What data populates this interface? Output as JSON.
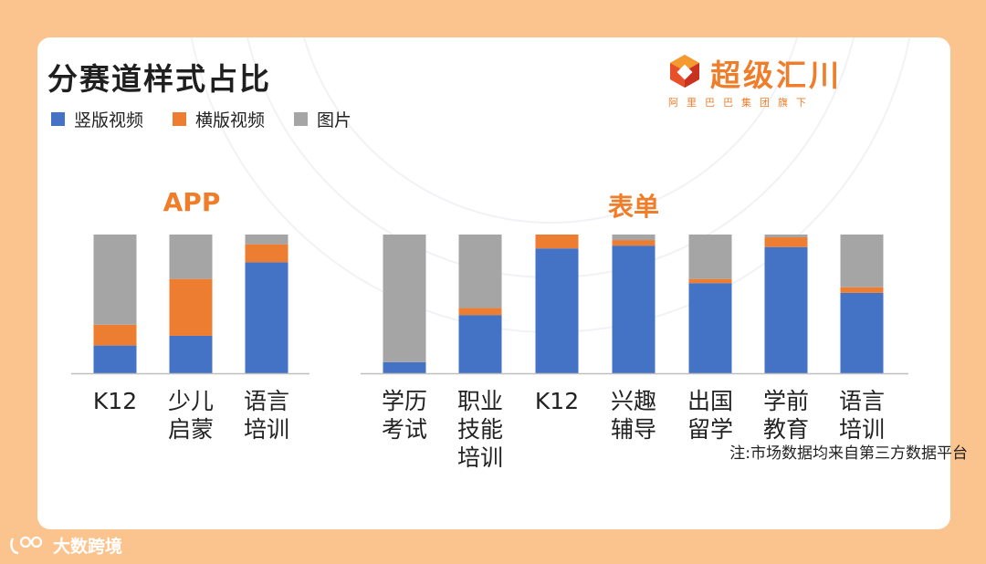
{
  "title": "分赛道样式占比",
  "logo": {
    "name": "超级汇川",
    "sub": "阿里巴巴集团旗下"
  },
  "colors": {
    "background": "#fbc48f",
    "accent": "#ef7d2a"
  },
  "watermark": "大数跨境",
  "note": "注:市场数据均来自第三方数据平台",
  "chart_data": [
    {
      "type": "bar",
      "stacked": true,
      "percent": true,
      "title": "APP",
      "categories": [
        "K12",
        "少儿\n启蒙",
        "语言\n培训"
      ],
      "series": [
        {
          "name": "竖版视频",
          "color": "#4472c4",
          "values": [
            20,
            27,
            80
          ]
        },
        {
          "name": "横版视频",
          "color": "#ed7d31",
          "values": [
            15,
            41,
            13
          ]
        },
        {
          "name": "图片",
          "color": "#a5a5a5",
          "values": [
            65,
            32,
            7
          ]
        }
      ],
      "ylim": [
        0,
        100
      ]
    },
    {
      "type": "bar",
      "stacked": true,
      "percent": true,
      "title": "表单",
      "categories": [
        "学历\n考试",
        "职业\n技能\n培训",
        "K12",
        "兴趣\n辅导",
        "出国\n留学",
        "学前\n教育",
        "语言\n培训"
      ],
      "series": [
        {
          "name": "竖版视频",
          "color": "#4472c4",
          "values": [
            8,
            42,
            90,
            92,
            65,
            91,
            58
          ]
        },
        {
          "name": "横版视频",
          "color": "#ed7d31",
          "values": [
            0,
            5,
            10,
            4,
            3,
            7,
            4
          ]
        },
        {
          "name": "图片",
          "color": "#a5a5a5",
          "values": [
            92,
            53,
            0,
            4,
            32,
            2,
            38
          ]
        }
      ],
      "ylim": [
        0,
        100
      ]
    }
  ]
}
